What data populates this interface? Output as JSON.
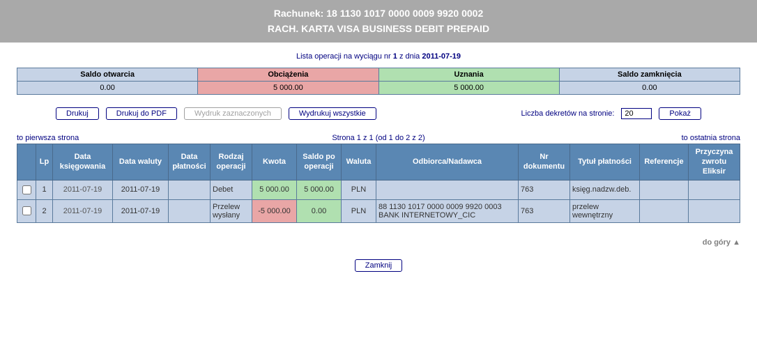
{
  "header": {
    "account_label": "Rachunek: 18 1130 1017 0000 0009 9920 0002",
    "account_name": "RACH. KARTA VISA BUSINESS DEBIT PREPAID"
  },
  "subtitle": {
    "prefix": "Lista operacji na wyciągu nr ",
    "number": "1",
    "mid": " z dnia ",
    "date": "2011-07-19"
  },
  "summary": {
    "headers": {
      "open": "Saldo otwarcia",
      "debit": "Obciążenia",
      "credit": "Uznania",
      "close": "Saldo zamknięcia"
    },
    "values": {
      "open": "0.00",
      "debit": "5 000.00",
      "credit": "5 000.00",
      "close": "0.00"
    }
  },
  "toolbar": {
    "print": "Drukuj",
    "print_pdf": "Drukuj do PDF",
    "print_selected": "Wydruk zaznaczonych",
    "print_all": "Wydrukuj wszystkie",
    "per_page_label": "Liczba dekretów na stronie:",
    "per_page_value": "20",
    "show": "Pokaż"
  },
  "nav": {
    "first": "to pierwsza strona",
    "center": "Strona 1 z 1 (od 1 do 2 z 2)",
    "last": "to ostatnia strona"
  },
  "columns": {
    "chk": "",
    "lp": "Lp",
    "book_date": "Data księgowania",
    "value_date": "Data waluty",
    "pay_date": "Data płatności",
    "op_type": "Rodzaj operacji",
    "amount": "Kwota",
    "balance": "Saldo po operacji",
    "currency": "Waluta",
    "party": "Odbiorca/Nadawca",
    "doc_no": "Nr dokumentu",
    "title": "Tytuł płatności",
    "ref": "Referencje",
    "reason": "Przyczyna zwrotu Eliksir"
  },
  "rows": [
    {
      "lp": "1",
      "book_date": "2011-07-19",
      "value_date": "2011-07-19",
      "pay_date": "",
      "op_type": "Debet",
      "amount": "5 000.00",
      "amount_class": "td-green",
      "balance": "5 000.00",
      "currency": "PLN",
      "party": "",
      "doc_no": "763",
      "title": "księg.nadzw.deb.",
      "ref": "",
      "reason": ""
    },
    {
      "lp": "2",
      "book_date": "2011-07-19",
      "value_date": "2011-07-19",
      "pay_date": "",
      "op_type": "Przelew wysłany",
      "amount": "-5 000.00",
      "amount_class": "td-red",
      "balance": "0.00",
      "currency": "PLN",
      "party": "88 1130 1017 0000 0009 9920 0003 BANK INTERNETOWY_CIC",
      "doc_no": "763",
      "title": "przelew wewnętrzny",
      "ref": "",
      "reason": ""
    }
  ],
  "footer": {
    "top": "do góry ▲",
    "close": "Zamknij"
  },
  "style": {
    "colors": {
      "banner_bg": "#a9a9a9",
      "banner_fg": "#ffffff",
      "row_bg": "#c6d3e6",
      "header_bg": "#5a87b3",
      "border": "#5a7a9c",
      "green": "#b0e0b0",
      "red": "#e9a6a6",
      "navy": "#000080"
    }
  }
}
